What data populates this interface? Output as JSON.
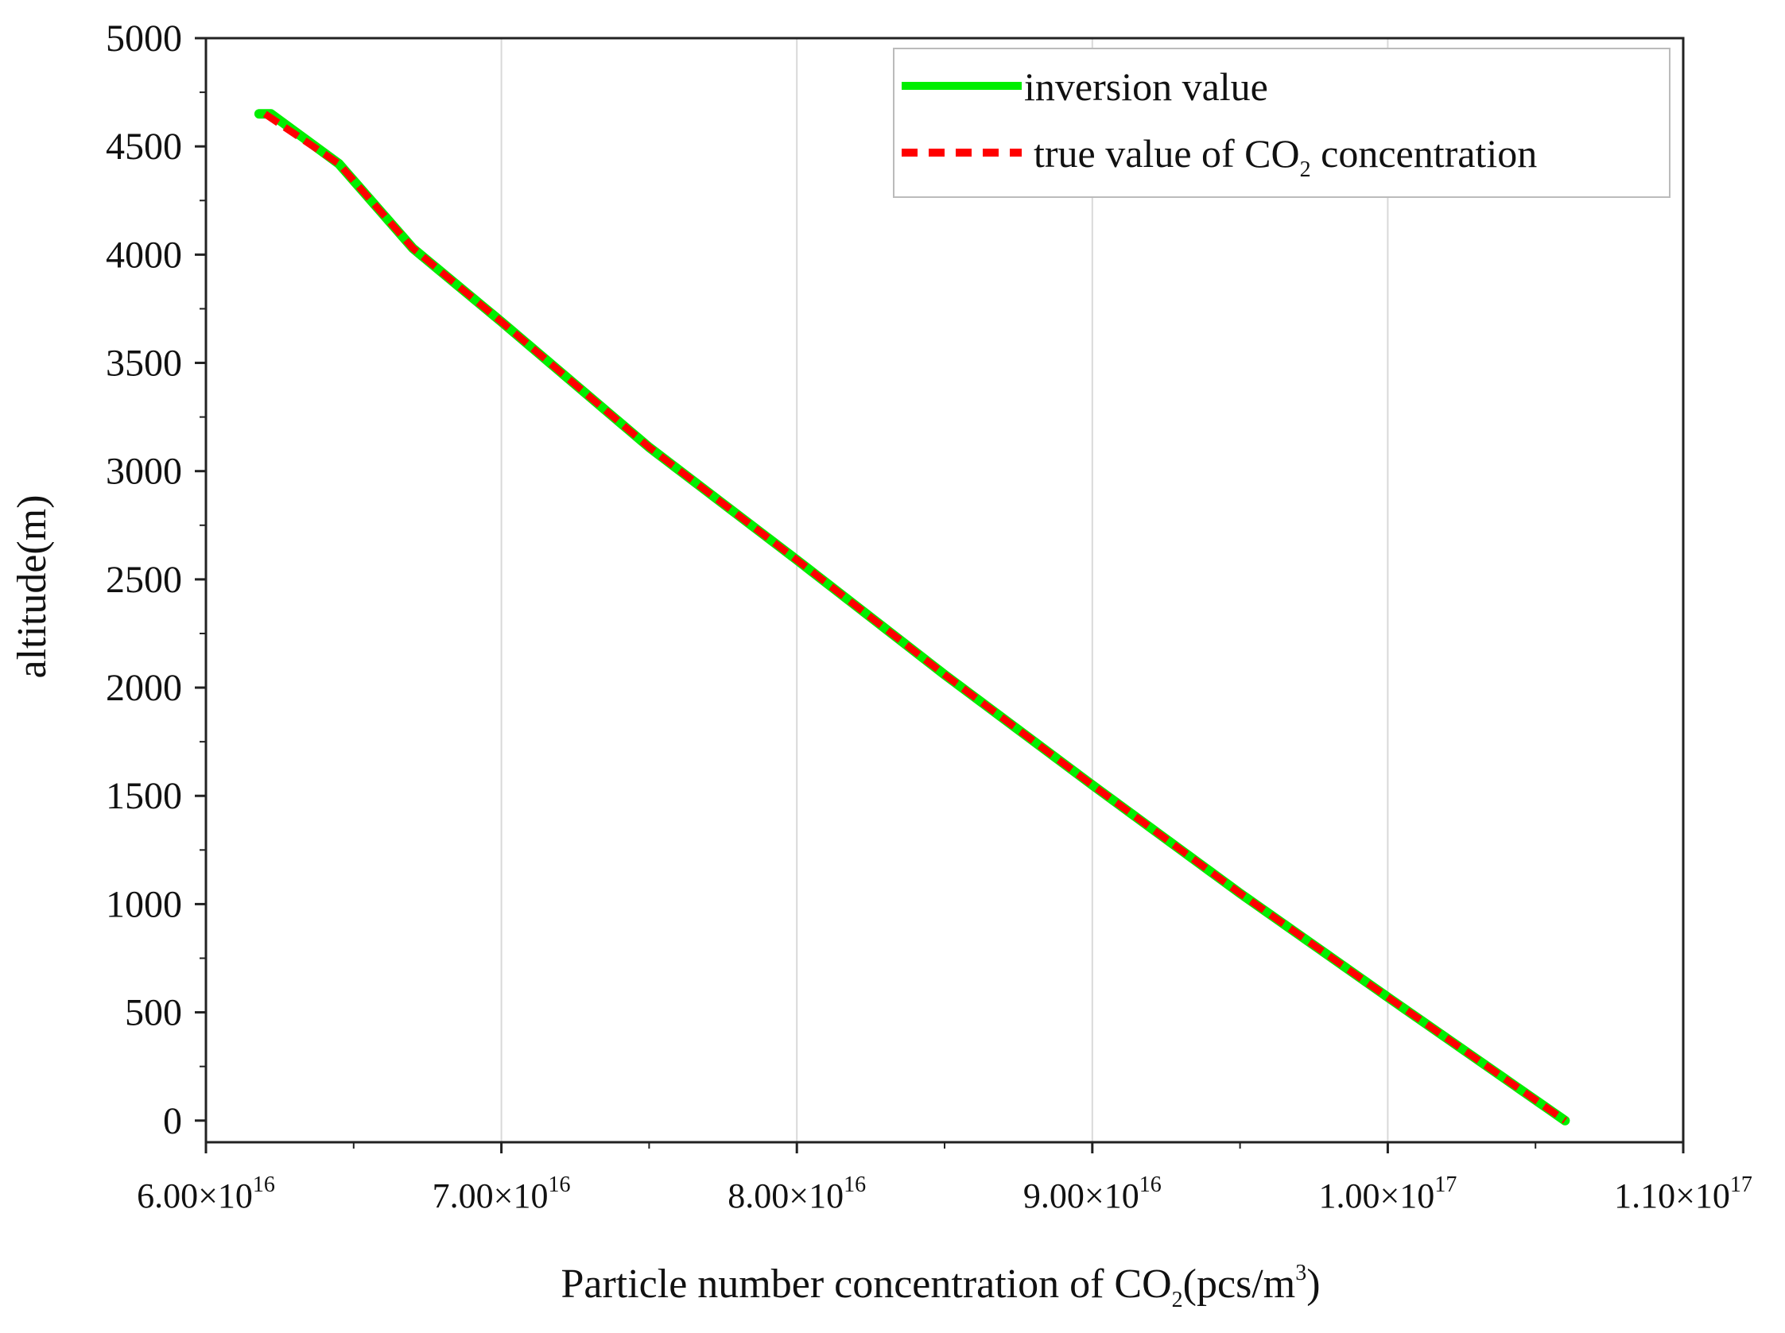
{
  "chart_data": {
    "type": "line",
    "title": "",
    "xlabel": {
      "main": "Particle number concentration of CO",
      "sub": "2",
      "unit_open": "(pcs/m",
      "unit_sup": "3",
      "unit_close": ")"
    },
    "ylabel": "altitude(m)",
    "xlim": [
      6e+16,
      1.1e+17
    ],
    "ylim": [
      -100,
      5000
    ],
    "xgrid": true,
    "ygrid": false,
    "yticks": [
      {
        "value": 0,
        "label": "0"
      },
      {
        "value": 500,
        "label": "500"
      },
      {
        "value": 1000,
        "label": "1000"
      },
      {
        "value": 1500,
        "label": "1500"
      },
      {
        "value": 2000,
        "label": "2000"
      },
      {
        "value": 2500,
        "label": "2500"
      },
      {
        "value": 3000,
        "label": "3000"
      },
      {
        "value": 3500,
        "label": "3500"
      },
      {
        "value": 4000,
        "label": "4000"
      },
      {
        "value": 4500,
        "label": "4500"
      },
      {
        "value": 5000,
        "label": "5000"
      }
    ],
    "xticks": [
      {
        "value": 6e+16,
        "mant": "6.00×10",
        "exp": "16"
      },
      {
        "value": 7e+16,
        "mant": "7.00×10",
        "exp": "16"
      },
      {
        "value": 8e+16,
        "mant": "8.00×10",
        "exp": "16"
      },
      {
        "value": 9e+16,
        "mant": "9.00×10",
        "exp": "16"
      },
      {
        "value": 1e+17,
        "mant": "1.00×10",
        "exp": "17"
      },
      {
        "value": 1.1e+17,
        "mant": "1.10×10",
        "exp": "17"
      }
    ],
    "series": [
      {
        "name": "inversion value",
        "color": "#00ee00",
        "style": "solid",
        "points": [
          [
            6.18e+16,
            4650
          ],
          [
            6.22e+16,
            4650
          ],
          [
            6.45e+16,
            4420
          ],
          [
            6.7e+16,
            4030
          ],
          [
            7e+16,
            3690
          ],
          [
            7.5e+16,
            3110
          ],
          [
            8e+16,
            2590
          ],
          [
            8.5e+16,
            2060
          ],
          [
            9e+16,
            1550
          ],
          [
            9.5e+16,
            1050
          ],
          [
            1e+17,
            570
          ],
          [
            1.06e+17,
            0
          ]
        ]
      },
      {
        "name": "true value of CO",
        "name_sub": "2",
        "name_suffix": " concentration",
        "color": "#ff0000",
        "style": "dashed",
        "points": [
          [
            6.2e+16,
            4650
          ],
          [
            6.45e+16,
            4420
          ],
          [
            6.7e+16,
            4030
          ],
          [
            7e+16,
            3690
          ],
          [
            7.5e+16,
            3110
          ],
          [
            8e+16,
            2590
          ],
          [
            8.5e+16,
            2060
          ],
          [
            9e+16,
            1550
          ],
          [
            9.5e+16,
            1050
          ],
          [
            1e+17,
            570
          ],
          [
            1.06e+17,
            0
          ]
        ]
      }
    ],
    "legend": {
      "location": "top-right",
      "frame": true
    }
  },
  "colors": {
    "axis": "#222222",
    "grid": "#d9d9d9",
    "background": "#ffffff"
  }
}
